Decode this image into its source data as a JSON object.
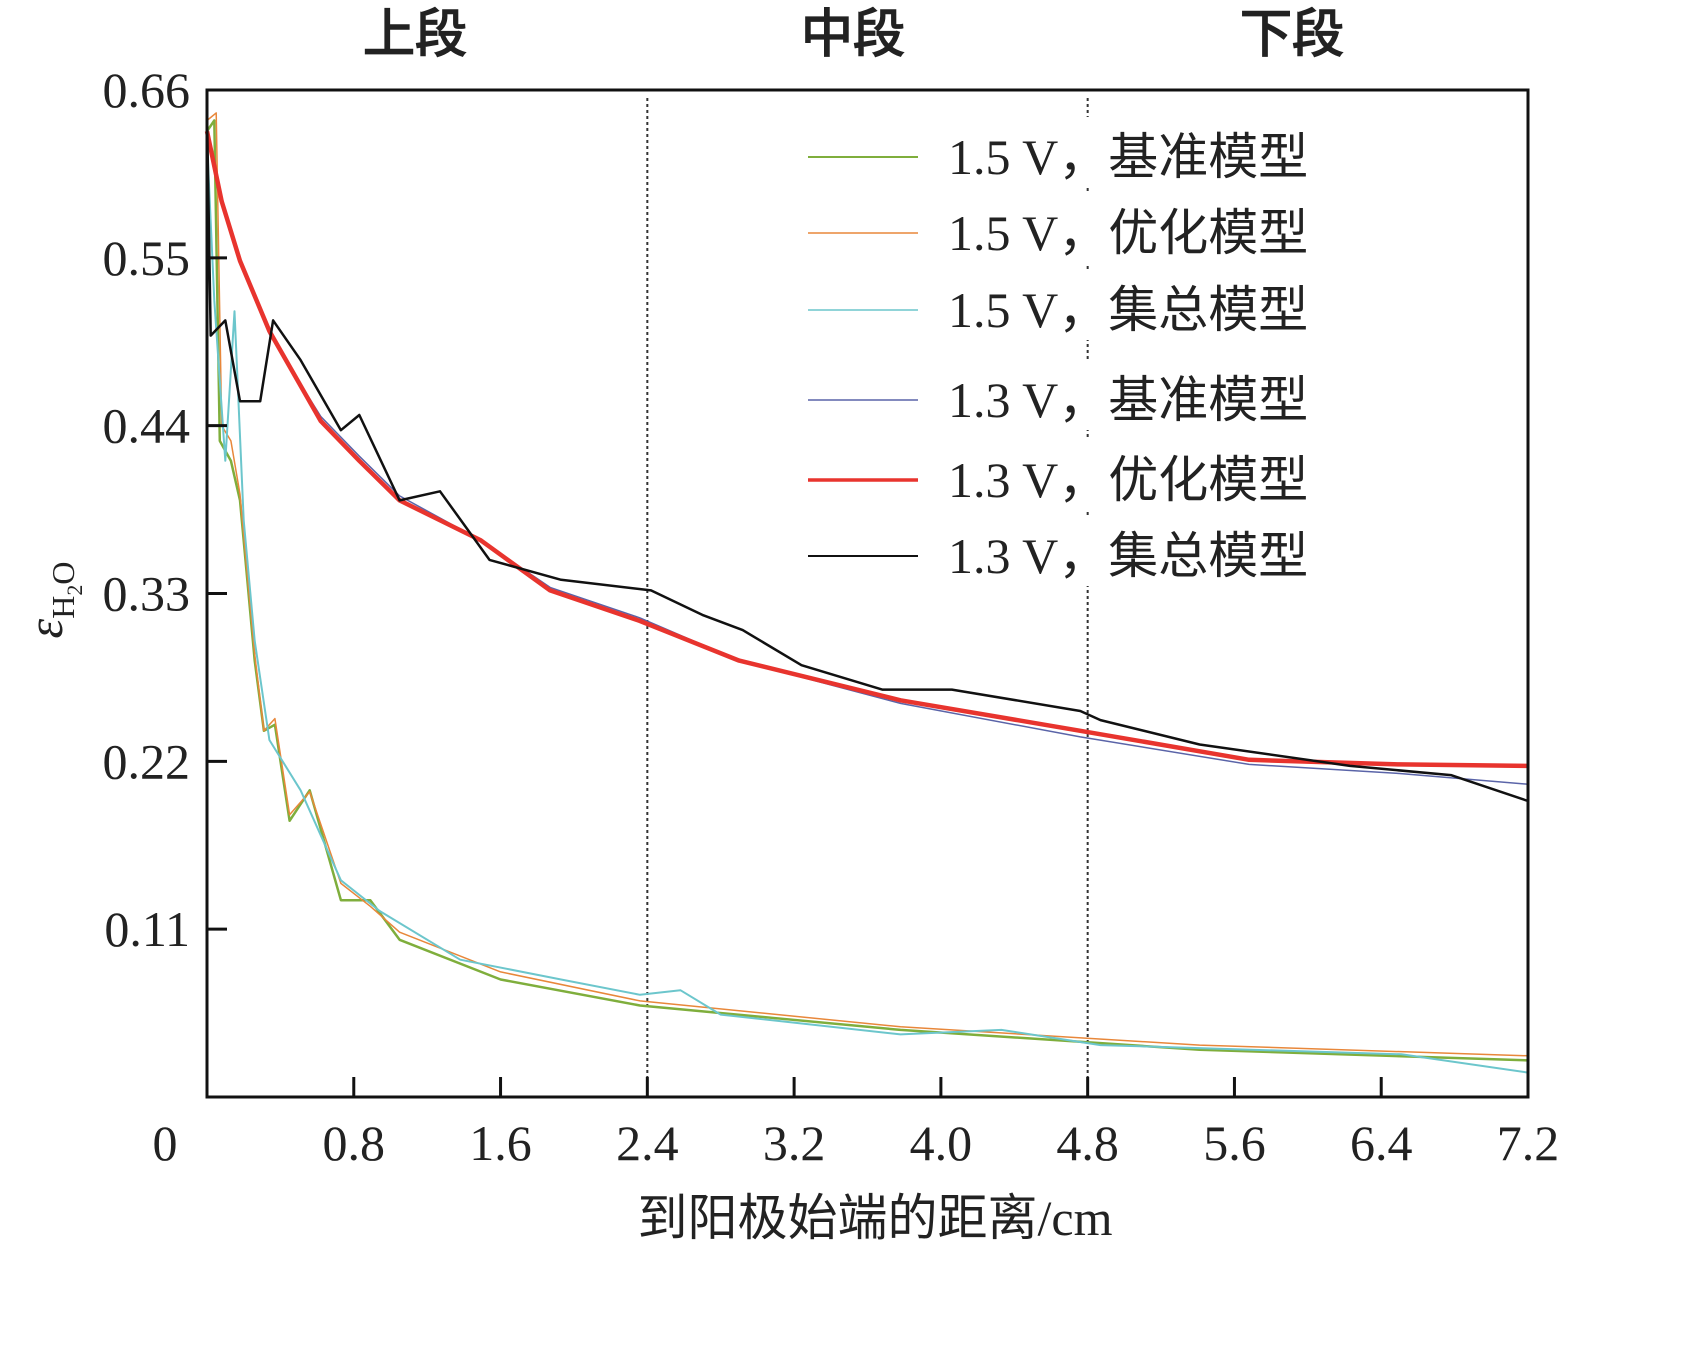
{
  "chart_data": {
    "type": "line",
    "title": "",
    "xlabel": "到阳极始端的距离/cm",
    "ylabel": "ε",
    "ylabel_sub": "H",
    "ylabel_sub2": "2",
    "ylabel_sub3": "O",
    "xlim": [
      0,
      7.2
    ],
    "ylim": [
      0,
      0.66
    ],
    "x_ticks": [
      "0",
      "0.8",
      "1.6",
      "2.4",
      "3.2",
      "4.0",
      "4.8",
      "5.6",
      "6.4",
      "7.2"
    ],
    "x_tick_values": [
      0,
      0.8,
      1.6,
      2.4,
      3.2,
      4.0,
      4.8,
      5.6,
      6.4,
      7.2
    ],
    "y_ticks": [
      "0.11",
      "0.22",
      "0.33",
      "0.44",
      "0.55",
      "0.66"
    ],
    "y_tick_values": [
      0.11,
      0.22,
      0.33,
      0.44,
      0.55,
      0.66
    ],
    "section_labels": [
      "上段",
      "中段",
      "下段"
    ],
    "section_dividers": [
      2.4,
      4.8
    ],
    "legend_position": "top-right",
    "grid": false,
    "series": [
      {
        "name": "1.5 V，基准模型",
        "color": "#7fae3c",
        "width": 2.5,
        "x": [
          0,
          0.04,
          0.07,
          0.13,
          0.18,
          0.26,
          0.31,
          0.37,
          0.45,
          0.56,
          0.73,
          0.89,
          1.05,
          1.6,
          2.36,
          3.78,
          5.41,
          7.2
        ],
        "y": [
          0.633,
          0.64,
          0.43,
          0.417,
          0.391,
          0.286,
          0.24,
          0.244,
          0.181,
          0.201,
          0.129,
          0.129,
          0.103,
          0.077,
          0.06,
          0.044,
          0.031,
          0.024
        ]
      },
      {
        "name": "1.5 V，优化模型",
        "color": "#e8873a",
        "width": 1.5,
        "x": [
          0,
          0.05,
          0.08,
          0.13,
          0.18,
          0.26,
          0.31,
          0.37,
          0.45,
          0.56,
          0.73,
          0.89,
          1.05,
          1.6,
          2.36,
          3.78,
          5.41,
          7.2
        ],
        "y": [
          0.64,
          0.645,
          0.44,
          0.43,
          0.395,
          0.29,
          0.24,
          0.248,
          0.185,
          0.2,
          0.14,
          0.125,
          0.108,
          0.082,
          0.063,
          0.046,
          0.034,
          0.027
        ]
      },
      {
        "name": "1.5 V，集总模型",
        "color": "#6cc6cc",
        "width": 2,
        "x": [
          0,
          0.04,
          0.1,
          0.15,
          0.2,
          0.26,
          0.34,
          0.51,
          0.73,
          0.94,
          1.38,
          1.93,
          2.36,
          2.58,
          2.8,
          3.78,
          4.33,
          4.87,
          6.51,
          7.2
        ],
        "y": [
          0.627,
          0.522,
          0.417,
          0.515,
          0.378,
          0.299,
          0.234,
          0.201,
          0.142,
          0.122,
          0.09,
          0.077,
          0.067,
          0.07,
          0.054,
          0.041,
          0.044,
          0.034,
          0.028,
          0.016
        ]
      },
      {
        "name": "1.3 V，基准模型",
        "color": "#5a64a8",
        "width": 1.5,
        "x": [
          0,
          0.08,
          0.18,
          0.34,
          0.62,
          0.83,
          1.05,
          1.49,
          1.87,
          2.36,
          2.9,
          3.78,
          4.76,
          5.68,
          6.5,
          7.2
        ],
        "y": [
          0.633,
          0.585,
          0.55,
          0.5,
          0.446,
          0.42,
          0.394,
          0.365,
          0.334,
          0.314,
          0.286,
          0.258,
          0.236,
          0.218,
          0.212,
          0.205
        ]
      },
      {
        "name": "1.3 V，优化模型",
        "color": "#e8342e",
        "width": 4.5,
        "x": [
          0,
          0.08,
          0.18,
          0.34,
          0.62,
          0.83,
          1.05,
          1.49,
          1.87,
          2.36,
          2.9,
          3.78,
          4.76,
          5.68,
          6.5,
          7.2
        ],
        "y": [
          0.633,
          0.587,
          0.548,
          0.502,
          0.443,
          0.417,
          0.391,
          0.365,
          0.332,
          0.312,
          0.286,
          0.26,
          0.24,
          0.221,
          0.218,
          0.217
        ]
      },
      {
        "name": "1.3 V，集总模型",
        "color": "#111111",
        "width": 2.5,
        "x": [
          0,
          0.02,
          0.1,
          0.18,
          0.29,
          0.36,
          0.51,
          0.73,
          0.83,
          1.05,
          1.27,
          1.54,
          1.93,
          2.42,
          2.7,
          2.92,
          3.24,
          3.68,
          4.06,
          4.76,
          4.87,
          5.41,
          6.23,
          6.78,
          7.2
        ],
        "y": [
          0.645,
          0.499,
          0.509,
          0.456,
          0.456,
          0.509,
          0.483,
          0.437,
          0.447,
          0.391,
          0.397,
          0.352,
          0.339,
          0.332,
          0.316,
          0.306,
          0.283,
          0.267,
          0.267,
          0.253,
          0.247,
          0.231,
          0.217,
          0.211,
          0.194
        ]
      }
    ]
  }
}
